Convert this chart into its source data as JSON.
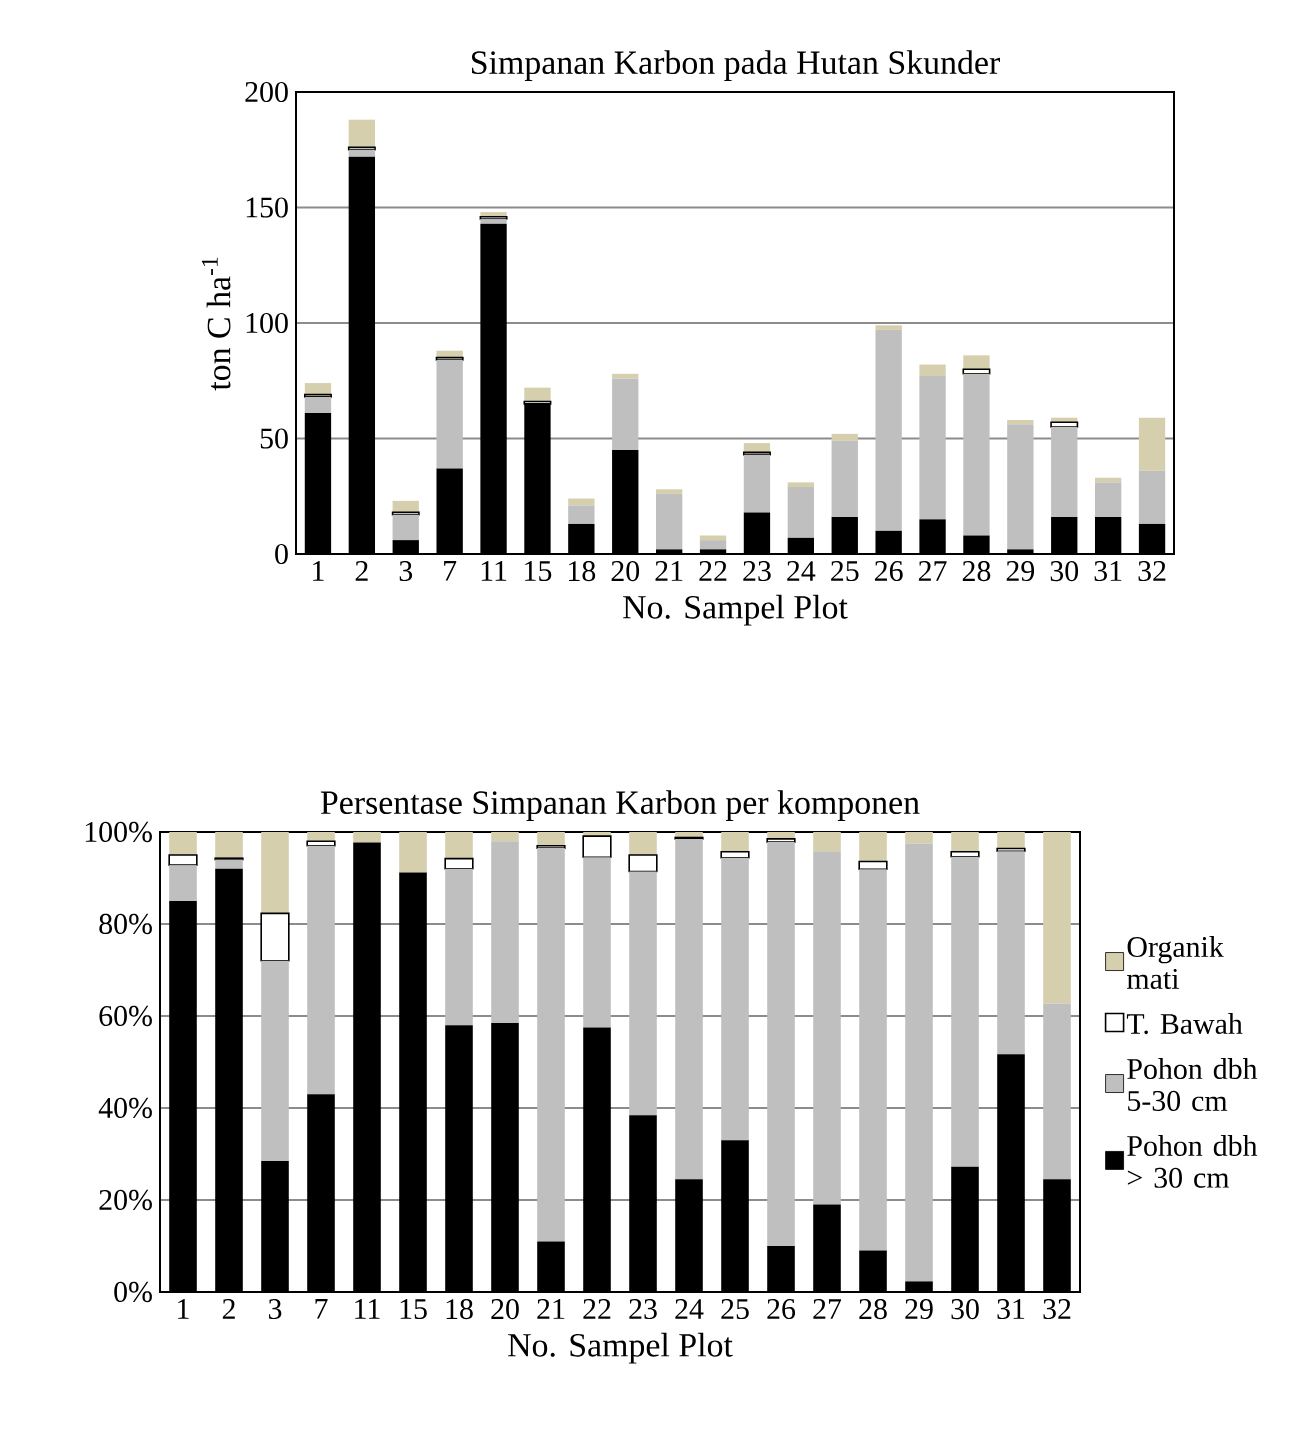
{
  "chart_data": [
    {
      "type": "bar",
      "title": "Simpanan Karbon pada Hutan Skunder",
      "xlabel": "No. Sampel Plot",
      "ylabel": "ton C ha$^{-1}$",
      "stacked": true,
      "grid": "y",
      "ylim": [
        0,
        200
      ],
      "yticks": [
        0,
        50,
        100,
        150,
        200
      ],
      "categories": [
        "1",
        "2",
        "3",
        "7",
        "11",
        "15",
        "18",
        "20",
        "21",
        "22",
        "23",
        "24",
        "25",
        "26",
        "27",
        "28",
        "29",
        "30",
        "31",
        "32"
      ],
      "series": [
        {
          "color": "#000000",
          "values": [
            61,
            172,
            6,
            37,
            143,
            65,
            13,
            45,
            2,
            2,
            18,
            7,
            16,
            10,
            15,
            8,
            2,
            16,
            16,
            13
          ]
        },
        {
          "color": "#bfbfbf",
          "values": [
            7,
            3,
            11,
            47,
            2,
            0,
            8,
            31,
            24,
            4,
            25,
            22,
            33,
            87,
            62,
            70,
            54,
            39,
            15,
            23
          ]
        },
        {
          "color": "#ffffff",
          "values": [
            1,
            1,
            1,
            1,
            1,
            1,
            0,
            0,
            0,
            0,
            1,
            0,
            0,
            0,
            0,
            2,
            0,
            2,
            0,
            0
          ]
        },
        {
          "color": "#d5cfae",
          "values": [
            5,
            12,
            5,
            3,
            2,
            6,
            3,
            2,
            2,
            2,
            4,
            2,
            3,
            2,
            5,
            6,
            2,
            2,
            2,
            23
          ]
        }
      ]
    },
    {
      "type": "bar",
      "title": "Persentase Simpanan Karbon per komponen",
      "xlabel": "No. Sampel Plot",
      "stacked": true,
      "grid": "y",
      "legend": "right",
      "ylim": [
        0,
        100
      ],
      "yticks": [
        {
          "value": 0,
          "label": "0%"
        },
        {
          "value": 20,
          "label": "20%"
        },
        {
          "value": 40,
          "label": "40%"
        },
        {
          "value": 60,
          "label": "60%"
        },
        {
          "value": 80,
          "label": "80%"
        },
        {
          "value": 100,
          "label": "100%"
        }
      ],
      "categories": [
        "1",
        "2",
        "3",
        "7",
        "11",
        "15",
        "18",
        "20",
        "21",
        "22",
        "23",
        "24",
        "25",
        "26",
        "27",
        "28",
        "29",
        "30",
        "31",
        "32"
      ],
      "series": [
        {
          "name": "Pohon dbh > 30 cm",
          "color": "#000000",
          "values": [
            85,
            92,
            28.5,
            43,
            97.7,
            91.2,
            58,
            58.5,
            11,
            57.5,
            38.4,
            24.5,
            33,
            10,
            19,
            9,
            2.3,
            27.2,
            51.7,
            24.5
          ]
        },
        {
          "name": "Pohon dbh 5-30 cm",
          "color": "#bfbfbf",
          "values": [
            7.8,
            2,
            43.5,
            54,
            0,
            0,
            34,
            39.5,
            85.5,
            37,
            53,
            74,
            61.4,
            87.8,
            76.8,
            82.9,
            95.2,
            67.4,
            44.1,
            38.2
          ]
        },
        {
          "name": "T. Bawah",
          "color": "#ffffff",
          "values": [
            2.2,
            0.3,
            10.3,
            1,
            0,
            0,
            2.2,
            0,
            0.5,
            4.6,
            3.6,
            0.3,
            1.3,
            0.7,
            0,
            1.7,
            0,
            1.1,
            0.6,
            0
          ]
        },
        {
          "name": "Organik mati",
          "color": "#d5cfae",
          "values": [
            5,
            5.7,
            17.7,
            2,
            2.3,
            8.8,
            5.8,
            2,
            3,
            0.9,
            5,
            1.2,
            4.3,
            1.5,
            4.2,
            6.4,
            2.5,
            4.3,
            3.6,
            37.3
          ]
        }
      ]
    }
  ]
}
